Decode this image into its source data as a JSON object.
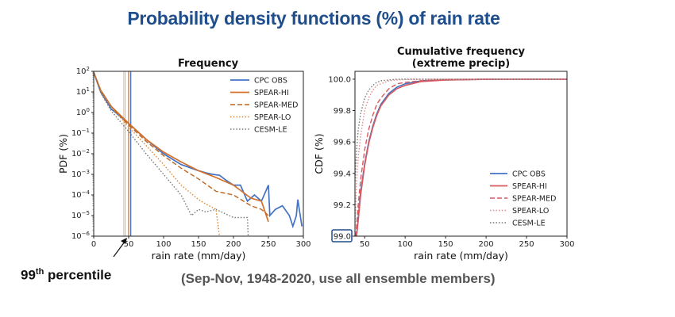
{
  "title": "Probability density functions (%) of rain rate",
  "percentile_label": {
    "prefix": "99",
    "sup": "th",
    "rest": " percentile"
  },
  "note": "(Sep-Nov, 1948-2020, use all ensemble members)",
  "colors": {
    "title": "#1f4e8c",
    "cpc_obs": "#4472c4",
    "spear_hi_left": "#d4702a",
    "spear_hi_right": "#d9595e",
    "spear_med_left": "#c0641c",
    "spear_med_right": "#d9595e",
    "spear_lo_left": "#e0852e",
    "spear_lo_right": "#e38a8a",
    "cesm_le": "#777777",
    "highlight_box": "#1f4e8c"
  },
  "chart_data": [
    {
      "type": "line",
      "title": "Frequency",
      "xlabel": "rain rate (mm/day)",
      "ylabel": "PDF (%)",
      "yscale": "log",
      "xlim": [
        0,
        300
      ],
      "ylim": [
        1e-06,
        100
      ],
      "xticks": [
        "0",
        "50",
        "100",
        "150",
        "200",
        "250",
        "300"
      ],
      "ytick_exps": [
        2,
        1,
        0,
        -1,
        -2,
        -3,
        -4,
        -5,
        -6
      ],
      "legend_position": "top-right",
      "percentile_lines": [
        {
          "series": "SPEAR-LO",
          "x": 43
        },
        {
          "series": "CESM-LE",
          "x": 45
        },
        {
          "series": "SPEAR-HI",
          "x": 50
        },
        {
          "series": "CPC OBS",
          "x": 53
        }
      ],
      "series": [
        {
          "name": "CPC OBS",
          "style": "solid",
          "colorKey": "cpc_obs",
          "x": [
            0,
            10,
            25,
            50,
            75,
            100,
            125,
            150,
            160,
            170,
            180,
            190,
            200,
            210,
            220,
            230,
            240,
            250,
            252,
            260,
            270,
            280,
            285,
            290,
            292,
            298
          ],
          "y": [
            90,
            10,
            1.5,
            0.3,
            0.05,
            0.01,
            0.003,
            0.0015,
            0.0012,
            0.001,
            0.0009,
            0.0005,
            0.0003,
            0.0003,
            5e-05,
            0.0001,
            5e-05,
            0.0003,
            1e-05,
            2e-05,
            3e-05,
            1e-05,
            3e-06,
            1e-05,
            6e-05,
            3e-06
          ]
        },
        {
          "name": "SPEAR-HI",
          "style": "solid",
          "colorKey": "spear_hi_left",
          "x": [
            0,
            10,
            25,
            50,
            75,
            100,
            125,
            150,
            175,
            200,
            225,
            240,
            250
          ],
          "y": [
            90,
            12,
            2,
            0.3,
            0.05,
            0.012,
            0.004,
            0.0015,
            0.0007,
            0.0003,
            7e-05,
            5e-05,
            5e-06
          ]
        },
        {
          "name": "SPEAR-MED",
          "style": "dashed",
          "colorKey": "spear_med_left",
          "x": [
            0,
            10,
            25,
            50,
            75,
            100,
            125,
            150,
            175,
            200,
            225,
            240,
            250
          ],
          "y": [
            90,
            12,
            2,
            0.25,
            0.04,
            0.008,
            0.002,
            0.0006,
            0.00015,
            0.0001,
            3e-05,
            2e-05,
            1e-05
          ]
        },
        {
          "name": "SPEAR-LO",
          "style": "dotted",
          "colorKey": "spear_lo_left",
          "x": [
            0,
            10,
            25,
            50,
            75,
            100,
            125,
            150,
            165,
            175,
            180
          ],
          "y": [
            90,
            11,
            1.8,
            0.2,
            0.025,
            0.003,
            0.0003,
            6e-05,
            3e-05,
            2e-05,
            1e-06
          ]
        },
        {
          "name": "CESM-LE",
          "style": "dotted",
          "colorKey": "cesm_le",
          "x": [
            0,
            10,
            25,
            50,
            75,
            100,
            125,
            140,
            150,
            160,
            175,
            200,
            210,
            220,
            221
          ],
          "y": [
            90,
            9,
            1.2,
            0.12,
            0.01,
            0.001,
            0.0001,
            1e-05,
            2e-05,
            1.5e-05,
            2e-05,
            8e-06,
            8e-06,
            8e-06,
            1e-06
          ]
        }
      ]
    },
    {
      "type": "line",
      "title": "Cumulative frequency",
      "subtitle": "(extreme precip)",
      "xlabel": "rain rate (mm/day)",
      "ylabel": "CDF (%)",
      "xlim": [
        38,
        300
      ],
      "ylim": [
        99.0,
        100.05
      ],
      "xticks": [
        "50",
        "100",
        "150",
        "200",
        "250",
        "300"
      ],
      "yticks": [
        "99.0",
        "99.2",
        "99.4",
        "99.6",
        "99.8",
        "100.0"
      ],
      "legend_position": "lower-right",
      "series": [
        {
          "name": "CPC OBS",
          "style": "solid",
          "colorKey": "cpc_obs",
          "x": [
            40,
            42,
            45,
            50,
            55,
            60,
            65,
            70,
            80,
            90,
            100,
            120,
            150,
            200,
            250,
            300
          ],
          "y": [
            99.0,
            99.12,
            99.28,
            99.46,
            99.6,
            99.7,
            99.78,
            99.84,
            99.91,
            99.95,
            99.97,
            99.99,
            99.995,
            99.999,
            100.0,
            100.0
          ]
        },
        {
          "name": "SPEAR-HI",
          "style": "solid",
          "colorKey": "spear_hi_right",
          "x": [
            40,
            42,
            45,
            50,
            55,
            60,
            65,
            70,
            80,
            90,
            100,
            120,
            150,
            200,
            250,
            300
          ],
          "y": [
            99.0,
            99.1,
            99.26,
            99.45,
            99.59,
            99.69,
            99.77,
            99.83,
            99.9,
            99.94,
            99.96,
            99.985,
            99.995,
            99.999,
            100.0,
            100.0
          ]
        },
        {
          "name": "SPEAR-MED",
          "style": "dashed",
          "colorKey": "spear_med_right",
          "x": [
            39,
            42,
            45,
            50,
            55,
            60,
            65,
            70,
            80,
            90,
            100,
            120,
            150,
            200,
            250,
            300
          ],
          "y": [
            99.0,
            99.2,
            99.36,
            99.55,
            99.68,
            99.77,
            99.84,
            99.88,
            99.94,
            99.97,
            99.98,
            99.99,
            99.998,
            100.0,
            100.0,
            100.0
          ]
        },
        {
          "name": "SPEAR-LO",
          "style": "dotted",
          "colorKey": "spear_lo_right",
          "x": [
            38,
            40,
            42,
            45,
            50,
            55,
            60,
            65,
            70,
            80,
            90,
            100,
            150,
            200,
            300
          ],
          "y": [
            99.05,
            99.35,
            99.5,
            99.64,
            99.8,
            99.88,
            99.93,
            99.96,
            99.97,
            99.99,
            99.995,
            99.998,
            100.0,
            100.0,
            100.0
          ]
        },
        {
          "name": "CESM-LE",
          "style": "dotted",
          "colorKey": "cesm_le",
          "x": [
            38,
            40,
            42,
            45,
            50,
            55,
            60,
            65,
            70,
            80,
            90,
            100,
            150,
            200,
            300
          ],
          "y": [
            99.35,
            99.55,
            99.68,
            99.78,
            99.88,
            99.93,
            99.96,
            99.98,
            99.99,
            99.995,
            100.0,
            100.0,
            100.0,
            100.0,
            100.0
          ]
        }
      ]
    }
  ]
}
